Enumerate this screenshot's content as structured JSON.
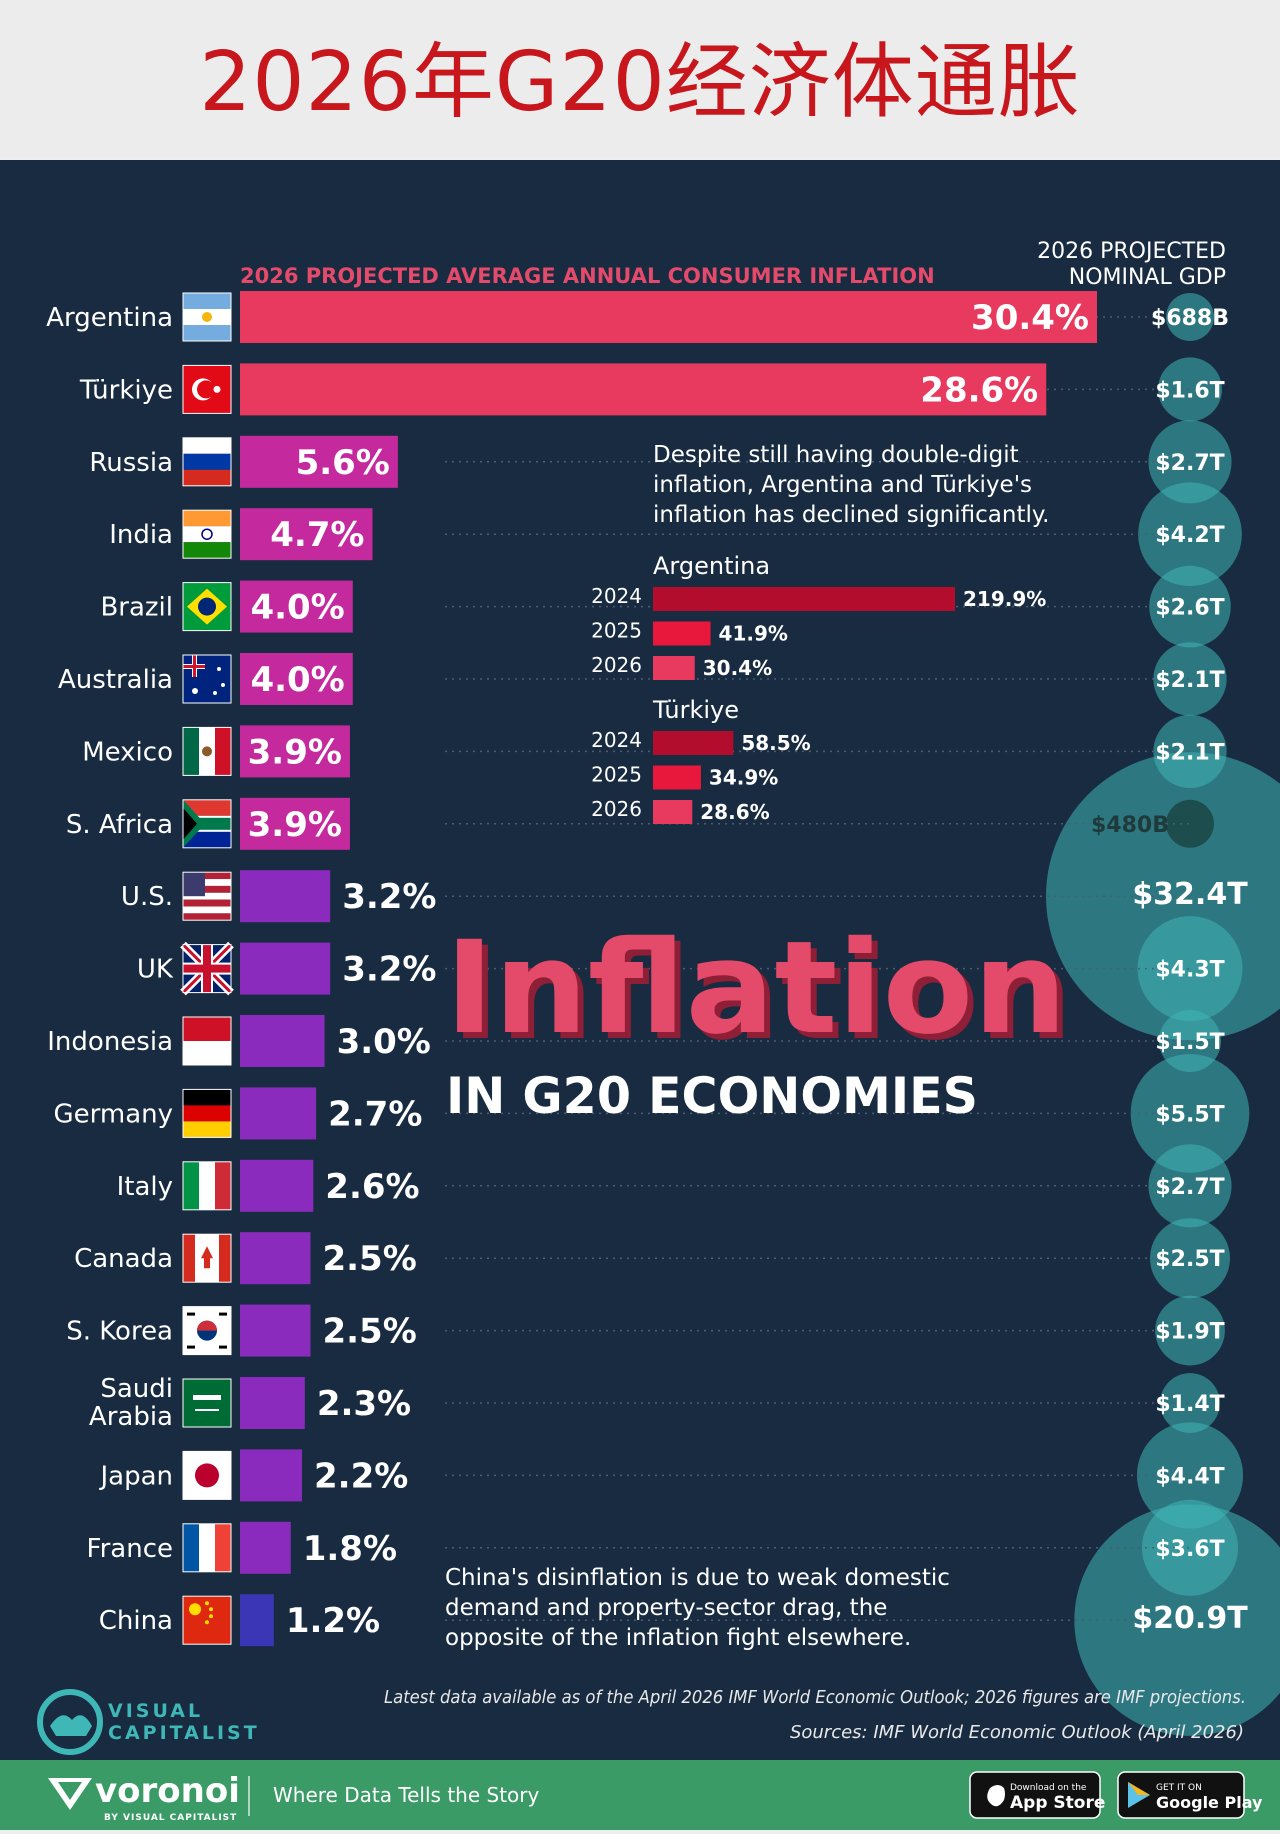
{
  "banner": {
    "title": "2026年G20经济体通胀"
  },
  "headings": {
    "inflation_axis": "2026 PROJECTED AVERAGE ANNUAL CONSUMER INFLATION",
    "gdp_line1": "2026 PROJECTED",
    "gdp_line2": "NOMINAL GDP"
  },
  "big_title": {
    "word": "Inflation",
    "subtitle": "IN G20 ECONOMIES"
  },
  "notes": {
    "decline": [
      "Despite still having double-digit",
      "inflation, Argentina and Türkiye's",
      "inflation has declined significantly."
    ],
    "china": [
      "China's disinflation is due to weak domestic",
      "demand and property-sector drag, the",
      "opposite of the inflation fight elsewhere."
    ]
  },
  "source": {
    "line1": "Latest data available as of the April 2026 IMF World Economic Outlook; 2026 figures are IMF projections.",
    "line2": "Sources: IMF World Economic Outlook (April 2026)"
  },
  "branding": {
    "vc_line1": "VISUAL",
    "vc_line2": "CAPITALIST",
    "voronoi": "voronoi",
    "voronoi_sub": "BY VISUAL CAPITALIST",
    "tagline": "Where Data Tells the Story",
    "appstore_small": "Download on the",
    "appstore_big": "App Store",
    "gplay_small": "GET IT ON",
    "gplay_big": "Google Play"
  },
  "colors": {
    "background": "#182b40",
    "banner_title": "#c8161d",
    "bar_red": "#e83a5e",
    "bar_magenta": "#c42a9e",
    "bar_purple": "#8a2bbd",
    "bar_indigo": "#3b36b5",
    "bubble": "#3fb7b7",
    "title_pink": "#e44a6a",
    "footer": "#3b9b67"
  },
  "chart_data": [
    {
      "type": "bar",
      "orientation": "horizontal",
      "title": "2026 PROJECTED AVERAGE ANNUAL CONSUMER INFLATION",
      "categories": [
        "Argentina",
        "Türkiye",
        "Russia",
        "India",
        "Brazil",
        "Australia",
        "Mexico",
        "S. Africa",
        "U.S.",
        "UK",
        "Indonesia",
        "Germany",
        "Italy",
        "Canada",
        "S. Korea",
        "Saudi Arabia",
        "Japan",
        "France",
        "China"
      ],
      "values": [
        30.4,
        28.6,
        5.6,
        4.7,
        4.0,
        4.0,
        3.9,
        3.9,
        3.2,
        3.2,
        3.0,
        2.7,
        2.6,
        2.5,
        2.5,
        2.3,
        2.2,
        1.8,
        1.2
      ],
      "labels": [
        "30.4%",
        "28.6%",
        "5.6%",
        "4.7%",
        "4.0%",
        "4.0%",
        "3.9%",
        "3.9%",
        "3.2%",
        "3.2%",
        "3.0%",
        "2.7%",
        "2.6%",
        "2.5%",
        "2.5%",
        "2.3%",
        "2.2%",
        "1.8%",
        "1.2%"
      ],
      "unit": "%"
    },
    {
      "type": "bubble",
      "title": "2026 PROJECTED NOMINAL GDP",
      "categories": [
        "Argentina",
        "Türkiye",
        "Russia",
        "India",
        "Brazil",
        "Australia",
        "Mexico",
        "S. Africa",
        "U.S.",
        "UK",
        "Indonesia",
        "Germany",
        "Italy",
        "Canada",
        "S. Korea",
        "Saudi Arabia",
        "Japan",
        "France",
        "China"
      ],
      "values": [
        0.688,
        1.6,
        2.7,
        4.2,
        2.6,
        2.1,
        2.1,
        0.48,
        32.4,
        4.3,
        1.5,
        5.5,
        2.7,
        2.5,
        1.9,
        1.4,
        4.4,
        3.6,
        20.9
      ],
      "labels": [
        "$688B",
        "$1.6T",
        "$2.7T",
        "$4.2T",
        "$2.6T",
        "$2.1T",
        "$2.1T",
        "$480B",
        "$32.4T",
        "$4.3T",
        "$1.5T",
        "$5.5T",
        "$2.7T",
        "$2.5T",
        "$1.9T",
        "$1.4T",
        "$4.4T",
        "$3.6T",
        "$20.9T"
      ],
      "unit": "trillion USD"
    },
    {
      "type": "bar",
      "orientation": "horizontal",
      "title": "Argentina",
      "categories": [
        "2024",
        "2025",
        "2026"
      ],
      "values": [
        219.9,
        41.9,
        30.4
      ],
      "labels": [
        "219.9%",
        "41.9%",
        "30.4%"
      ]
    },
    {
      "type": "bar",
      "orientation": "horizontal",
      "title": "Türkiye",
      "categories": [
        "2024",
        "2025",
        "2026"
      ],
      "values": [
        58.5,
        34.9,
        28.6
      ],
      "labels": [
        "58.5%",
        "34.9%",
        "28.6%"
      ]
    }
  ]
}
